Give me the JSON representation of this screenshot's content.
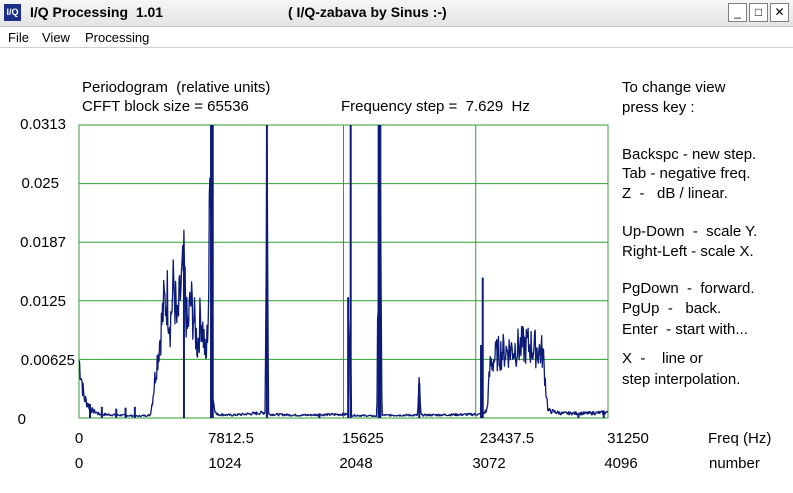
{
  "window": {
    "icon_text": "I/Q",
    "title": "I/Q Processing  1.01",
    "subtitle": "( I/Q-zabava by Sinus :-)",
    "buttons": {
      "minimize": "_",
      "maximize": "□",
      "close": "✕"
    }
  },
  "menu": {
    "items": [
      "File",
      "View",
      "Processing"
    ]
  },
  "header": {
    "line1": "Periodogram  (relative units)",
    "line2": "CFFT block size = 65536",
    "freq_step": "Frequency step =  7.629  Hz"
  },
  "help": {
    "lines": [
      "To change view",
      "press key :",
      "Backspc - new step.",
      "Tab - negative freq.",
      "Z  -   dB / linear.",
      "Up-Down  -  scale Y.",
      "Right-Left - scale X.",
      "PgDown  -  forward.",
      "PgUp  -   back.",
      "Enter  - start with...",
      "X  -    line or",
      "step interpolation."
    ]
  },
  "colors": {
    "grid": "#2fa12f",
    "trace": "#0c1a78",
    "window_bg": "#ffffff"
  },
  "chart_data": {
    "type": "line",
    "title": "Periodogram  (relative units)",
    "xlabel": "Freq (Hz)",
    "x2label": "number",
    "xlim": [
      0,
      31250
    ],
    "ylim": [
      0,
      0.0313
    ],
    "y_ticks": [
      "0.0313",
      "0.025",
      "0.0187",
      "0.0125",
      "0.00625",
      "0"
    ],
    "x_ticks": [
      "0",
      "7812.5",
      "15625",
      "23437.5",
      "31250"
    ],
    "x2_ticks": [
      "0",
      "1024",
      "2048",
      "3072",
      "4096"
    ],
    "grid": true,
    "series": [
      {
        "points": [
          [
            0,
            0.0062
          ],
          [
            300,
            0.0022
          ],
          [
            700,
            0.0009
          ],
          [
            1200,
            0.0004
          ],
          [
            2500,
            0.0003
          ],
          [
            3500,
            0.0002
          ],
          [
            4200,
            0.0003
          ],
          [
            4300,
            0.0014
          ],
          [
            4500,
            0.0045
          ],
          [
            4800,
            0.0088
          ],
          [
            5000,
            0.0118
          ],
          [
            5200,
            0.0132
          ],
          [
            5400,
            0.0102
          ],
          [
            5600,
            0.0145
          ],
          [
            5800,
            0.0096
          ],
          [
            6000,
            0.0135
          ],
          [
            6200,
            0.0158
          ],
          [
            6400,
            0.0092
          ],
          [
            6600,
            0.0125
          ],
          [
            6800,
            0.0104
          ],
          [
            7000,
            0.0078
          ],
          [
            7200,
            0.0112
          ],
          [
            7400,
            0.0081
          ],
          [
            7500,
            0.0058
          ],
          [
            7650,
            0.0122
          ],
          [
            7780,
            0.0313
          ],
          [
            7900,
            0.0022
          ],
          [
            8100,
            0.0004
          ],
          [
            9000,
            0.0003
          ],
          [
            10500,
            0.0005
          ],
          [
            11000,
            0.0006
          ],
          [
            11100,
            0.0313
          ],
          [
            11200,
            0.0004
          ],
          [
            13000,
            0.0003
          ],
          [
            15900,
            0.0004
          ],
          [
            16000,
            0.0128
          ],
          [
            16100,
            0.0003
          ],
          [
            17600,
            0.0002
          ],
          [
            17750,
            0.0313
          ],
          [
            17900,
            0.0003
          ],
          [
            20000,
            0.0003
          ],
          [
            20100,
            0.0037
          ],
          [
            20200,
            0.0003
          ],
          [
            23800,
            0.0004
          ],
          [
            24100,
            0.0008
          ],
          [
            24300,
            0.0058
          ],
          [
            24500,
            0.0062
          ],
          [
            24700,
            0.0068
          ],
          [
            25000,
            0.0071
          ],
          [
            25500,
            0.0073
          ],
          [
            26000,
            0.0076
          ],
          [
            26500,
            0.0078
          ],
          [
            27000,
            0.0074
          ],
          [
            27400,
            0.007
          ],
          [
            27700,
            0.0008
          ],
          [
            28500,
            0.0005
          ],
          [
            30000,
            0.0005
          ],
          [
            31250,
            0.0006
          ]
        ],
        "spikes": [
          [
            650,
            0.0015
          ],
          [
            1350,
            0.0012
          ],
          [
            2200,
            0.001
          ],
          [
            2750,
            0.0011
          ],
          [
            3300,
            0.0012
          ],
          [
            6200,
            0.0163
          ],
          [
            7800,
            0.0313
          ],
          [
            7900,
            0.0313
          ],
          [
            11100,
            0.0313
          ],
          [
            14200,
            0.0005
          ],
          [
            15900,
            0.0129
          ],
          [
            16050,
            0.0313
          ],
          [
            17700,
            0.0313
          ],
          [
            17800,
            0.0313
          ],
          [
            20100,
            0.0037
          ],
          [
            23750,
            0.0078
          ],
          [
            23850,
            0.015
          ],
          [
            29500,
            0.0005
          ],
          [
            31000,
            0.0008
          ]
        ]
      }
    ]
  }
}
